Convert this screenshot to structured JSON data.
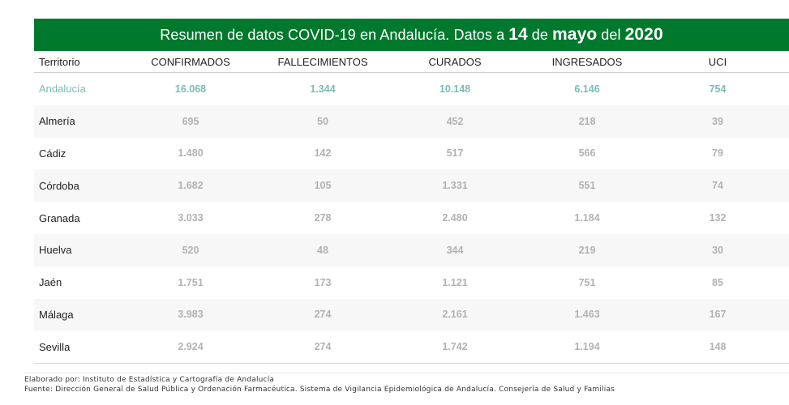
{
  "banner": {
    "prefix": "Resumen de datos COVID-19 en Andalucía. Datos a",
    "day": "14",
    "de": "de",
    "month": "mayo",
    "del": "del",
    "year": "2020",
    "background_color": "#00792d"
  },
  "chart_data": {
    "type": "table",
    "title": "Resumen de datos COVID-19 en Andalucía. Datos a 14 de mayo del 2020",
    "columns": [
      "Territorio",
      "CONFIRMADOS",
      "FALLECIMIENTOS",
      "CURADOS",
      "INGRESADOS",
      "UCI"
    ],
    "rows": [
      {
        "territorio": "Andalucía",
        "values": [
          "16.068",
          "1.344",
          "10.148",
          "6.146",
          "754"
        ],
        "is_total": true
      },
      {
        "territorio": "Almería",
        "values": [
          "695",
          "50",
          "452",
          "218",
          "39"
        ],
        "is_total": false
      },
      {
        "territorio": "Cádiz",
        "values": [
          "1.480",
          "142",
          "517",
          "566",
          "79"
        ],
        "is_total": false
      },
      {
        "territorio": "Córdoba",
        "values": [
          "1.682",
          "105",
          "1.331",
          "551",
          "74"
        ],
        "is_total": false
      },
      {
        "territorio": "Granada",
        "values": [
          "3.033",
          "278",
          "2.480",
          "1.184",
          "132"
        ],
        "is_total": false
      },
      {
        "territorio": "Huelva",
        "values": [
          "520",
          "48",
          "344",
          "219",
          "30"
        ],
        "is_total": false
      },
      {
        "territorio": "Jaén",
        "values": [
          "1.751",
          "173",
          "1.121",
          "751",
          "85"
        ],
        "is_total": false
      },
      {
        "territorio": "Málaga",
        "values": [
          "3.983",
          "274",
          "2.161",
          "1.463",
          "167"
        ],
        "is_total": false
      },
      {
        "territorio": "Sevilla",
        "values": [
          "2.924",
          "274",
          "1.742",
          "1.194",
          "148"
        ],
        "is_total": false
      }
    ],
    "colors": {
      "total_value": "#7bbbb2",
      "province_value": "#b2b2b2",
      "stripe": "#f7f7f7"
    }
  },
  "footer": {
    "line1": "Elaborado por: Instituto de Estadística y Cartografía de Andalucía",
    "line2": "Fuente: Dirección General de Salud Pública y Ordenación Farmacéutica. Sistema de Vigilancia Epidemiológica de Andalucía. Consejería de Salud y Familias"
  }
}
